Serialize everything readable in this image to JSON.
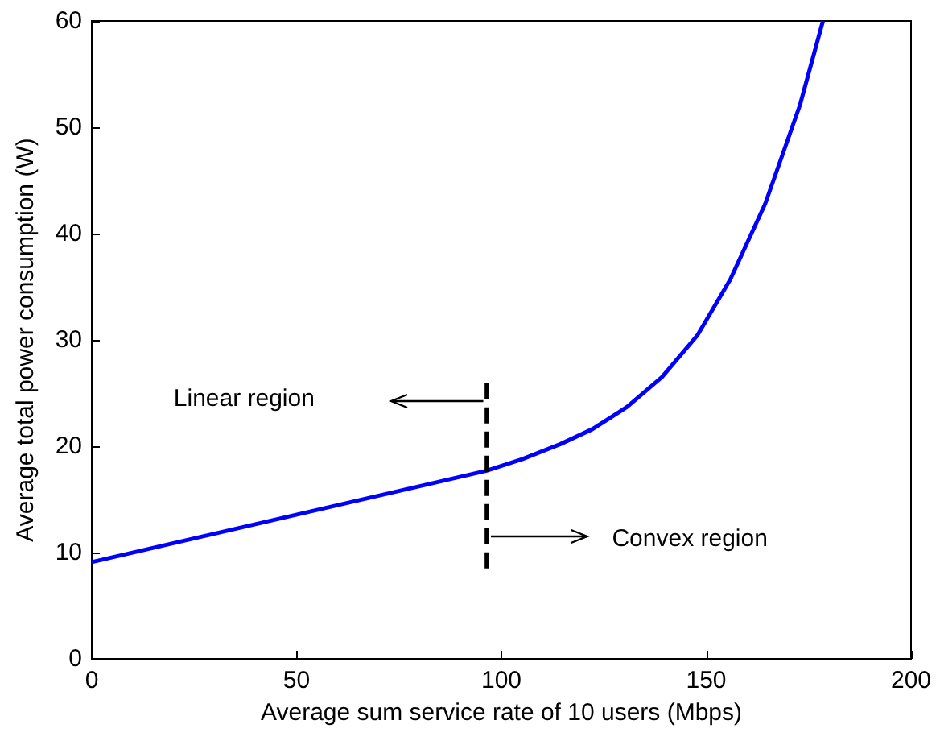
{
  "chart_data": {
    "type": "line",
    "xlabel": "Average sum service rate of 10 users (Mbps)",
    "ylabel": "Average total power consumption (W)",
    "xlim": [
      0,
      200
    ],
    "xticks": [
      0,
      50,
      100,
      150,
      200
    ],
    "ylim": [
      0,
      60
    ],
    "yticks": [
      0,
      10,
      20,
      30,
      40,
      50,
      60
    ],
    "marker": "none",
    "series": [
      {
        "color": "#0000ff",
        "line_style": "solid",
        "x": [
          0,
          96.4,
          105.2,
          114.4,
          122.2,
          130.7,
          139.2,
          147.8,
          155.9,
          164.4,
          172.9,
          178.5
        ],
        "values": [
          9.1,
          17.7,
          18.8,
          20.2,
          21.6,
          23.7,
          26.5,
          30.4,
          35.7,
          42.8,
          52.1,
          60
        ]
      },
      {
        "color": "#000000",
        "line_style": "dashed",
        "x": [
          96.4,
          96.4
        ],
        "values": [
          8.5,
          26.5
        ]
      }
    ],
    "annotations": [
      "Linear region",
      "Convex region"
    ]
  }
}
